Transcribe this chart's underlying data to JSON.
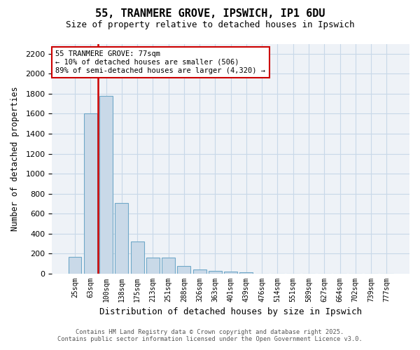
{
  "title_line1": "55, TRANMERE GROVE, IPSWICH, IP1 6DU",
  "title_line2": "Size of property relative to detached houses in Ipswich",
  "xlabel": "Distribution of detached houses by size in Ipswich",
  "ylabel": "Number of detached properties",
  "categories": [
    "25sqm",
    "63sqm",
    "100sqm",
    "138sqm",
    "175sqm",
    "213sqm",
    "251sqm",
    "288sqm",
    "326sqm",
    "363sqm",
    "401sqm",
    "439sqm",
    "476sqm",
    "514sqm",
    "551sqm",
    "589sqm",
    "627sqm",
    "664sqm",
    "702sqm",
    "739sqm",
    "777sqm"
  ],
  "values": [
    165,
    1600,
    1775,
    710,
    320,
    160,
    160,
    80,
    45,
    25,
    20,
    15,
    0,
    0,
    0,
    0,
    0,
    0,
    0,
    0,
    0
  ],
  "bar_color": "#c9d9e8",
  "bar_edgecolor": "#6fa8c8",
  "vline_color": "#cc0000",
  "annotation_text": "55 TRANMERE GROVE: 77sqm\n← 10% of detached houses are smaller (506)\n89% of semi-detached houses are larger (4,320) →",
  "annotation_box_edgecolor": "#cc0000",
  "ylim": [
    0,
    2300
  ],
  "yticks": [
    0,
    200,
    400,
    600,
    800,
    1000,
    1200,
    1400,
    1600,
    1800,
    2000,
    2200
  ],
  "grid_color": "#c8d8e8",
  "plot_bg_color": "#eef2f7",
  "footer_text": "Contains HM Land Registry data © Crown copyright and database right 2025.\nContains public sector information licensed under the Open Government Licence v3.0."
}
